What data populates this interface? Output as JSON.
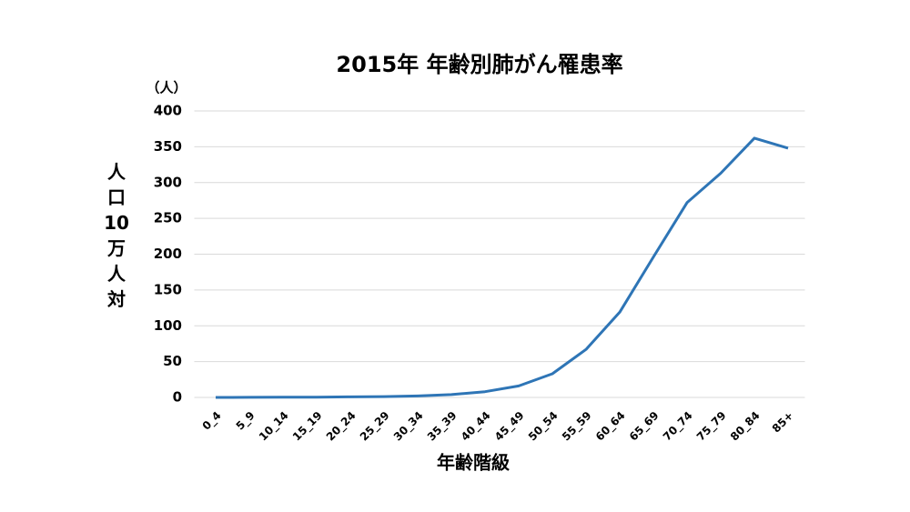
{
  "chart_data": {
    "type": "line",
    "title": "2015年 年齢別肺がん罹患率",
    "unit_label": "（人）",
    "y_label": "人口10万人対",
    "x_label": "年齢階級",
    "categories": [
      "0_4",
      "5_9",
      "10_14",
      "15_19",
      "20_24",
      "25_29",
      "30_34",
      "35_39",
      "40_44",
      "45_49",
      "50_54",
      "55_59",
      "60_64",
      "65_69",
      "70_74",
      "75_79",
      "80_84",
      "85+"
    ],
    "values": [
      0,
      0.1,
      0.2,
      0.4,
      0.8,
      1.2,
      2,
      4,
      8,
      16,
      33,
      67,
      119,
      196,
      272,
      313,
      362,
      348
    ],
    "color": "#2e75b6",
    "ylim": [
      0,
      400
    ],
    "yticks": [
      0,
      50,
      100,
      150,
      200,
      250,
      300,
      350,
      400
    ],
    "grid": true
  }
}
